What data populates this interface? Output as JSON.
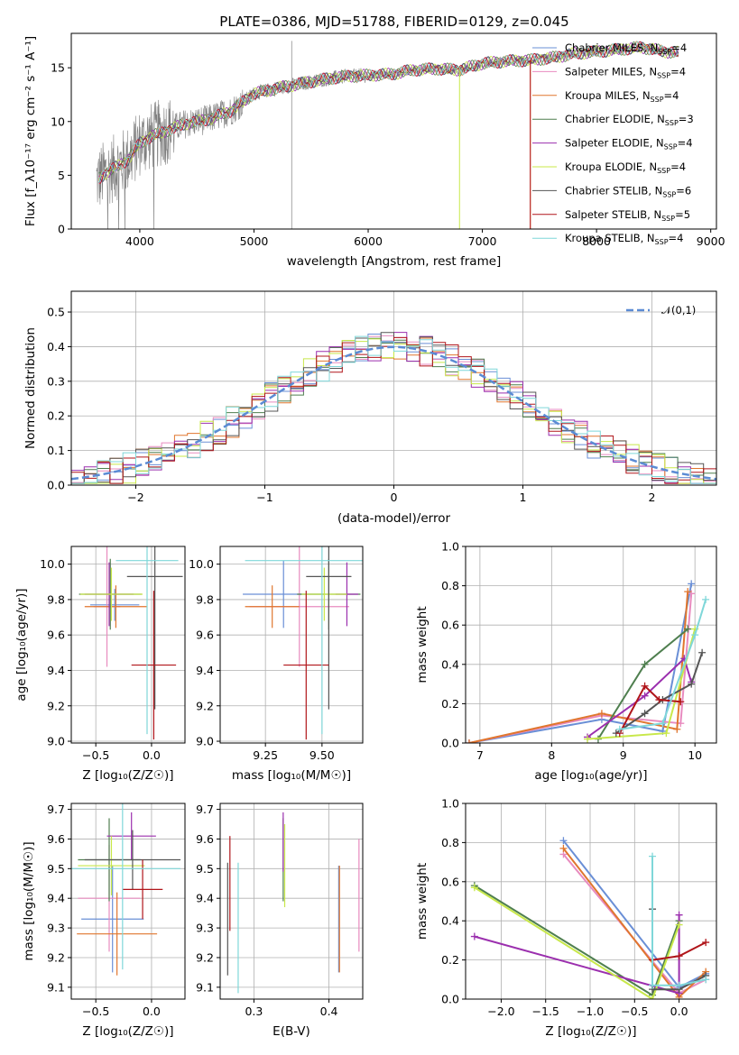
{
  "title": "PLATE=0386, MJD=51788, FIBERID=0129, z=0.045",
  "colors": {
    "Chabrier MILES": "#6a8fd6",
    "Salpeter MILES": "#e88bbf",
    "Kroupa MILES": "#e0762e",
    "Chabrier ELODIE": "#4f7f4f",
    "Salpeter ELODIE": "#9b2fae",
    "Kroupa ELODIE": "#c8e84a",
    "Chabrier STELIB": "#555555",
    "Salpeter STELIB": "#b0151a",
    "Kroupa STELIB": "#7fd7d9",
    "data": "#808080",
    "gaussian": "#5b8bd4"
  },
  "chart_data": [
    {
      "id": "spectrum",
      "type": "line",
      "title": "PLATE=0386, MJD=51788, FIBERID=0129, z=0.045",
      "xlabel": "wavelength [Angstrom, rest frame]",
      "ylabel": "Flux [f_λ10⁻¹⁷ erg cm⁻² s⁻¹ A⁻¹]",
      "xlim": [
        3400,
        9050
      ],
      "ylim": [
        0,
        18.2
      ],
      "xticks": [
        "4000",
        "5000",
        "6000",
        "7000",
        "8000",
        "9000"
      ],
      "yticks": [
        "0",
        "5",
        "10",
        "15"
      ],
      "legend_location": "upper right",
      "legend": [
        {
          "name": "Chabrier MILES",
          "label": "Chabrier MILES, N",
          "sub": "SSP",
          "tail": "=4"
        },
        {
          "name": "Salpeter MILES",
          "label": "Salpeter MILES, N",
          "sub": "SSP",
          "tail": "=4"
        },
        {
          "name": "Kroupa MILES",
          "label": "Kroupa MILES, N",
          "sub": "SSP",
          "tail": "=4"
        },
        {
          "name": "Chabrier ELODIE",
          "label": "Chabrier ELODIE, N",
          "sub": "SSP",
          "tail": "=3"
        },
        {
          "name": "Salpeter ELODIE",
          "label": "Salpeter ELODIE, N",
          "sub": "SSP",
          "tail": "=4"
        },
        {
          "name": "Kroupa ELODIE",
          "label": "Kroupa ELODIE, N",
          "sub": "SSP",
          "tail": "=4"
        },
        {
          "name": "Chabrier STELIB",
          "label": "Chabrier STELIB, N",
          "sub": "SSP",
          "tail": "=6"
        },
        {
          "name": "Salpeter STELIB",
          "label": "Salpeter STELIB, N",
          "sub": "SSP",
          "tail": "=5"
        },
        {
          "name": "Kroupa STELIB",
          "label": "Kroupa STELIB, N",
          "sub": "SSP",
          "tail": "=4"
        }
      ],
      "continuum": {
        "x": [
          3620,
          3700,
          3800,
          3900,
          4000,
          4100,
          4200,
          4400,
          4600,
          4800,
          4900,
          5000,
          5200,
          5400,
          5600,
          5800,
          6000,
          6200,
          6400,
          6600,
          6800,
          7000,
          7200,
          7400,
          7600,
          7800,
          8000,
          8200,
          8400,
          8600,
          8720
        ],
        "y": [
          4.5,
          5.2,
          5.8,
          6.5,
          8.0,
          8.6,
          9.0,
          9.8,
          10.2,
          11.0,
          11.8,
          12.6,
          13.1,
          13.5,
          13.9,
          14.2,
          14.3,
          14.4,
          14.8,
          14.9,
          14.8,
          15.4,
          15.6,
          15.7,
          15.9,
          16.3,
          16.5,
          16.7,
          16.9,
          16.5,
          16.4
        ]
      },
      "model_cutoffs": [
        {
          "name": "Kroupa MILES",
          "x": 7420
        },
        {
          "name": "Kroupa ELODIE",
          "x": 6800
        },
        {
          "name": "Salpeter STELIB",
          "x": 7420
        }
      ]
    },
    {
      "id": "residuals",
      "type": "histogram",
      "xlabel": "(data-model)/error",
      "ylabel": "Normed distribution",
      "xlim": [
        -2.5,
        2.5
      ],
      "ylim": [
        0,
        0.56
      ],
      "xticks": [
        "−2",
        "−1",
        "0",
        "1",
        "2"
      ],
      "yticks": [
        "0.0",
        "0.1",
        "0.2",
        "0.3",
        "0.4",
        "0.5"
      ],
      "legend": "𝒩(0,1)",
      "legend_location": "upper right",
      "bin_width": 0.1,
      "bin_start": -2.5
    },
    {
      "id": "age_vs_Z",
      "type": "errorbar",
      "xlabel": "Z [log₁₀(Z/Z☉)]",
      "ylabel": "age  [log₁₀(age/yr)]",
      "xlim": [
        -0.72,
        0.3
      ],
      "ylim": [
        8.99,
        10.1
      ],
      "xticks": [
        "−0.5",
        "0.0"
      ],
      "yticks": [
        "9.0",
        "9.2",
        "9.4",
        "9.6",
        "9.8",
        "10.0"
      ],
      "points": [
        {
          "name": "Chabrier MILES",
          "x": -0.33,
          "xerr": 0.22,
          "y": 9.77,
          "yerr": 0.09
        },
        {
          "name": "Salpeter MILES",
          "x": -0.4,
          "xerr": 0.12,
          "y": 9.76,
          "yerr": 0.34
        },
        {
          "name": "Kroupa MILES",
          "x": -0.32,
          "xerr": 0.28,
          "y": 9.76,
          "yerr": 0.12
        },
        {
          "name": "Chabrier ELODIE",
          "x": -0.37,
          "xerr": 0.28,
          "y": 9.83,
          "yerr": 0.2
        },
        {
          "name": "Salpeter ELODIE",
          "x": -0.38,
          "xerr": 0.22,
          "y": 9.83,
          "yerr": 0.18
        },
        {
          "name": "Kroupa ELODIE",
          "x": -0.36,
          "xerr": 0.28,
          "y": 9.83,
          "yerr": 0.15
        },
        {
          "name": "Chabrier STELIB",
          "x": 0.03,
          "xerr": 0.25,
          "y": 9.93,
          "yerr": 0.75
        },
        {
          "name": "Salpeter STELIB",
          "x": 0.02,
          "xerr": 0.2,
          "y": 9.43,
          "yerr": 0.42
        },
        {
          "name": "Kroupa STELIB",
          "x": -0.04,
          "xerr": 0.28,
          "y": 10.02,
          "yerr": 0.98
        }
      ]
    },
    {
      "id": "age_vs_mass",
      "type": "errorbar",
      "xlabel": "mass [log₁₀(M/M☉)]",
      "ylabel": "",
      "xlim": [
        9.05,
        9.68
      ],
      "ylim": [
        8.99,
        10.1
      ],
      "xticks": [
        "9.25",
        "9.50"
      ],
      "yticks": [
        "9.0",
        "9.2",
        "9.4",
        "9.6",
        "9.8",
        "10.0"
      ],
      "points": [
        {
          "name": "Chabrier MILES",
          "x": 9.33,
          "xerr": 0.18,
          "y": 9.83,
          "yerr": 0.19
        },
        {
          "name": "Salpeter MILES",
          "x": 9.4,
          "xerr": 0.22,
          "y": 9.76,
          "yerr": 0.34
        },
        {
          "name": "Kroupa MILES",
          "x": 9.28,
          "xerr": 0.12,
          "y": 9.76,
          "yerr": 0.12
        },
        {
          "name": "Chabrier ELODIE",
          "x": 9.53,
          "xerr": 0.14,
          "y": 9.83,
          "yerr": 0.2
        },
        {
          "name": "Salpeter ELODIE",
          "x": 9.61,
          "xerr": 0.05,
          "y": 9.83,
          "yerr": 0.18
        },
        {
          "name": "Kroupa ELODIE",
          "x": 9.51,
          "xerr": 0.1,
          "y": 9.83,
          "yerr": 0.15
        },
        {
          "name": "Chabrier STELIB",
          "x": 9.53,
          "xerr": 0.1,
          "y": 9.93,
          "yerr": 0.75
        },
        {
          "name": "Salpeter STELIB",
          "x": 9.43,
          "xerr": 0.1,
          "y": 9.43,
          "yerr": 0.42
        },
        {
          "name": "Kroupa STELIB",
          "x": 9.5,
          "xerr": 0.34,
          "y": 10.02,
          "yerr": 0.98
        }
      ]
    },
    {
      "id": "weight_vs_age",
      "type": "line",
      "xlabel": "age  [log₁₀(age/yr)]",
      "ylabel": "mass weight",
      "xlim": [
        6.8,
        10.3
      ],
      "ylim": [
        0,
        1.0
      ],
      "xticks": [
        "7",
        "8",
        "9",
        "10"
      ],
      "yticks": [
        "0.0",
        "0.2",
        "0.4",
        "0.6",
        "0.8",
        "1.0"
      ],
      "series": [
        {
          "name": "Chabrier MILES",
          "x": [
            6.85,
            8.7,
            9.55,
            9.95
          ],
          "y": [
            0.0,
            0.12,
            0.06,
            0.81
          ]
        },
        {
          "name": "Salpeter MILES",
          "x": [
            6.85,
            8.7,
            9.8,
            9.95
          ],
          "y": [
            0.0,
            0.14,
            0.1,
            0.76
          ]
        },
        {
          "name": "Kroupa MILES",
          "x": [
            6.85,
            8.7,
            9.75,
            9.9
          ],
          "y": [
            0.0,
            0.15,
            0.07,
            0.77
          ]
        },
        {
          "name": "Chabrier ELODIE",
          "x": [
            8.65,
            9.3,
            9.9
          ],
          "y": [
            0.02,
            0.4,
            0.58
          ]
        },
        {
          "name": "Salpeter ELODIE",
          "x": [
            8.5,
            9.3,
            9.85,
            9.95
          ],
          "y": [
            0.03,
            0.24,
            0.43,
            0.31
          ]
        },
        {
          "name": "Kroupa ELODIE",
          "x": [
            8.5,
            9.6,
            10.0
          ],
          "y": [
            0.02,
            0.05,
            0.58
          ]
        },
        {
          "name": "Chabrier STELIB",
          "x": [
            8.9,
            9.3,
            9.55,
            9.95,
            10.1
          ],
          "y": [
            0.05,
            0.15,
            0.22,
            0.3,
            0.46
          ]
        },
        {
          "name": "Salpeter STELIB",
          "x": [
            8.95,
            9.3,
            9.5,
            9.8
          ],
          "y": [
            0.05,
            0.29,
            0.22,
            0.21
          ]
        },
        {
          "name": "Kroupa STELIB",
          "x": [
            8.95,
            9.55,
            10.0,
            10.15
          ],
          "y": [
            0.07,
            0.1,
            0.55,
            0.73
          ]
        }
      ]
    },
    {
      "id": "mass_vs_Z",
      "type": "errorbar",
      "xlabel": "Z [log₁₀(Z/Z☉)]",
      "ylabel": "mass [log₁₀(M/M☉)]",
      "xlim": [
        -0.72,
        0.3
      ],
      "ylim": [
        9.06,
        9.72
      ],
      "xticks": [
        "−0.5",
        "0.0"
      ],
      "yticks": [
        "9.1",
        "9.2",
        "9.3",
        "9.4",
        "9.5",
        "9.6",
        "9.7"
      ],
      "points": [
        {
          "name": "Chabrier MILES",
          "x": -0.35,
          "xerr": 0.28,
          "y": 9.33,
          "yerr": 0.18
        },
        {
          "name": "Salpeter MILES",
          "x": -0.38,
          "xerr": 0.28,
          "y": 9.4,
          "yerr": 0.18
        },
        {
          "name": "Kroupa MILES",
          "x": -0.31,
          "xerr": 0.36,
          "y": 9.28,
          "yerr": 0.14
        },
        {
          "name": "Chabrier ELODIE",
          "x": -0.38,
          "xerr": 0.28,
          "y": 9.53,
          "yerr": 0.14
        },
        {
          "name": "Salpeter ELODIE",
          "x": -0.18,
          "xerr": 0.22,
          "y": 9.61,
          "yerr": 0.08
        },
        {
          "name": "Kroupa ELODIE",
          "x": -0.36,
          "xerr": 0.3,
          "y": 9.51,
          "yerr": 0.1
        },
        {
          "name": "Chabrier STELIB",
          "x": -0.17,
          "xerr": 0.43,
          "y": 9.53,
          "yerr": 0.1
        },
        {
          "name": "Salpeter STELIB",
          "x": -0.08,
          "xerr": 0.18,
          "y": 9.43,
          "yerr": 0.1
        },
        {
          "name": "Kroupa STELIB",
          "x": -0.26,
          "xerr": 0.52,
          "y": 9.5,
          "yerr": 0.34
        }
      ]
    },
    {
      "id": "mass_vs_ebv",
      "type": "errorbar",
      "xlabel": "E(B-V)",
      "ylabel": "",
      "xlim": [
        0.255,
        0.445
      ],
      "ylim": [
        9.06,
        9.72
      ],
      "xticks": [
        "0.3",
        "0.4"
      ],
      "yticks": [
        "9.1",
        "9.2",
        "9.3",
        "9.4",
        "9.5",
        "9.6",
        "9.7"
      ],
      "points": [
        {
          "name": "Chabrier MILES",
          "x": 0.413,
          "xerr": 0.0,
          "y": 9.33,
          "yerr": 0.18
        },
        {
          "name": "Salpeter MILES",
          "x": 0.44,
          "xerr": 0.0,
          "y": 9.41,
          "yerr": 0.19
        },
        {
          "name": "Kroupa MILES",
          "x": 0.414,
          "xerr": 0.0,
          "y": 9.33,
          "yerr": 0.18
        },
        {
          "name": "Chabrier ELODIE",
          "x": 0.339,
          "xerr": 0.0,
          "y": 9.53,
          "yerr": 0.14
        },
        {
          "name": "Salpeter ELODIE",
          "x": 0.339,
          "xerr": 0.0,
          "y": 9.59,
          "yerr": 0.1
        },
        {
          "name": "Kroupa ELODIE",
          "x": 0.341,
          "xerr": 0.0,
          "y": 9.51,
          "yerr": 0.14
        },
        {
          "name": "Chabrier STELIB",
          "x": 0.265,
          "xerr": 0.0,
          "y": 9.33,
          "yerr": 0.19
        },
        {
          "name": "Salpeter STELIB",
          "x": 0.268,
          "xerr": 0.0,
          "y": 9.45,
          "yerr": 0.16
        },
        {
          "name": "Kroupa STELIB",
          "x": 0.279,
          "xerr": 0.0,
          "y": 9.3,
          "yerr": 0.22
        }
      ]
    },
    {
      "id": "weight_vs_Z",
      "type": "line",
      "xlabel": "Z [log₁₀(Z/Z☉)]",
      "ylabel": "mass weight",
      "xlim": [
        -2.4,
        0.42
      ],
      "ylim": [
        0,
        1.0
      ],
      "xticks": [
        "−2.0",
        "−1.5",
        "−1.0",
        "−0.5",
        "0.0"
      ],
      "yticks": [
        "0.0",
        "0.2",
        "0.4",
        "0.6",
        "0.8",
        "1.0"
      ],
      "series": [
        {
          "name": "Chabrier MILES",
          "x": [
            -1.3,
            0.0,
            0.3
          ],
          "y": [
            0.81,
            0.06,
            0.13
          ]
        },
        {
          "name": "Salpeter MILES",
          "x": [
            -1.3,
            0.0,
            0.3
          ],
          "y": [
            0.74,
            0.03,
            0.1
          ]
        },
        {
          "name": "Kroupa MILES",
          "x": [
            -1.3,
            0.0,
            0.3
          ],
          "y": [
            0.77,
            0.01,
            0.14
          ]
        },
        {
          "name": "Chabrier ELODIE",
          "x": [
            -2.3,
            -0.3,
            0.0
          ],
          "y": [
            0.58,
            0.02,
            0.4
          ]
        },
        {
          "name": "Salpeter ELODIE",
          "x": [
            -2.3,
            0.0,
            0.0
          ],
          "y": [
            0.32,
            0.03,
            0.43
          ]
        },
        {
          "name": "Kroupa ELODIE",
          "x": [
            -2.3,
            -0.3,
            0.0
          ],
          "y": [
            0.57,
            0.0,
            0.38
          ]
        },
        {
          "name": "Chabrier STELIB",
          "x": [
            -0.3,
            -0.3,
            0.0,
            0.3
          ],
          "y": [
            0.46,
            0.05,
            0.05,
            0.12
          ]
        },
        {
          "name": "Salpeter STELIB",
          "x": [
            -0.3,
            0.0,
            0.3
          ],
          "y": [
            0.2,
            0.22,
            0.29
          ]
        },
        {
          "name": "Kroupa STELIB",
          "x": [
            -0.3,
            -0.3,
            0.0,
            0.3
          ],
          "y": [
            0.73,
            0.07,
            0.07,
            0.1
          ]
        }
      ]
    }
  ]
}
